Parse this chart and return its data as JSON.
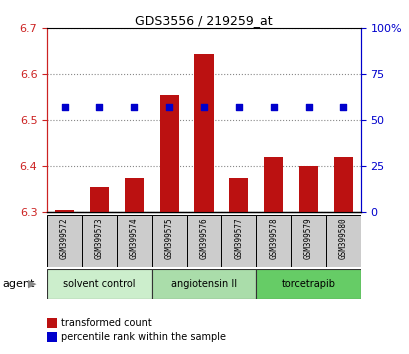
{
  "title": "GDS3556 / 219259_at",
  "samples": [
    "GSM399572",
    "GSM399573",
    "GSM399574",
    "GSM399575",
    "GSM399576",
    "GSM399577",
    "GSM399578",
    "GSM399579",
    "GSM399580"
  ],
  "transformed_counts": [
    6.305,
    6.355,
    6.375,
    6.555,
    6.645,
    6.375,
    6.42,
    6.4,
    6.42
  ],
  "percentile_ranks": [
    57,
    57,
    57,
    57,
    57,
    57,
    57,
    57,
    57
  ],
  "ymin": 6.3,
  "ymax": 6.7,
  "y_ticks": [
    6.3,
    6.4,
    6.5,
    6.6,
    6.7
  ],
  "y2min": 0,
  "y2max": 100,
  "y2_ticks": [
    0,
    25,
    50,
    75,
    100
  ],
  "bar_color": "#bb1111",
  "dot_color": "#0000cc",
  "bar_bottom": 6.3,
  "bar_width": 0.55,
  "agent_groups": [
    {
      "label": "solvent control",
      "start": 0,
      "end": 3,
      "color": "#cceecc"
    },
    {
      "label": "angiotensin II",
      "start": 3,
      "end": 6,
      "color": "#aaddaa"
    },
    {
      "label": "torcetrapib",
      "start": 6,
      "end": 9,
      "color": "#66cc66"
    }
  ],
  "agent_label": "agent",
  "legend_items": [
    {
      "label": "transformed count",
      "color": "#bb1111"
    },
    {
      "label": "percentile rank within the sample",
      "color": "#0000cc"
    }
  ],
  "tick_color_left": "#cc2222",
  "tick_color_right": "#0000cc",
  "grid_color": "#888888",
  "cell_bg": "#cccccc"
}
